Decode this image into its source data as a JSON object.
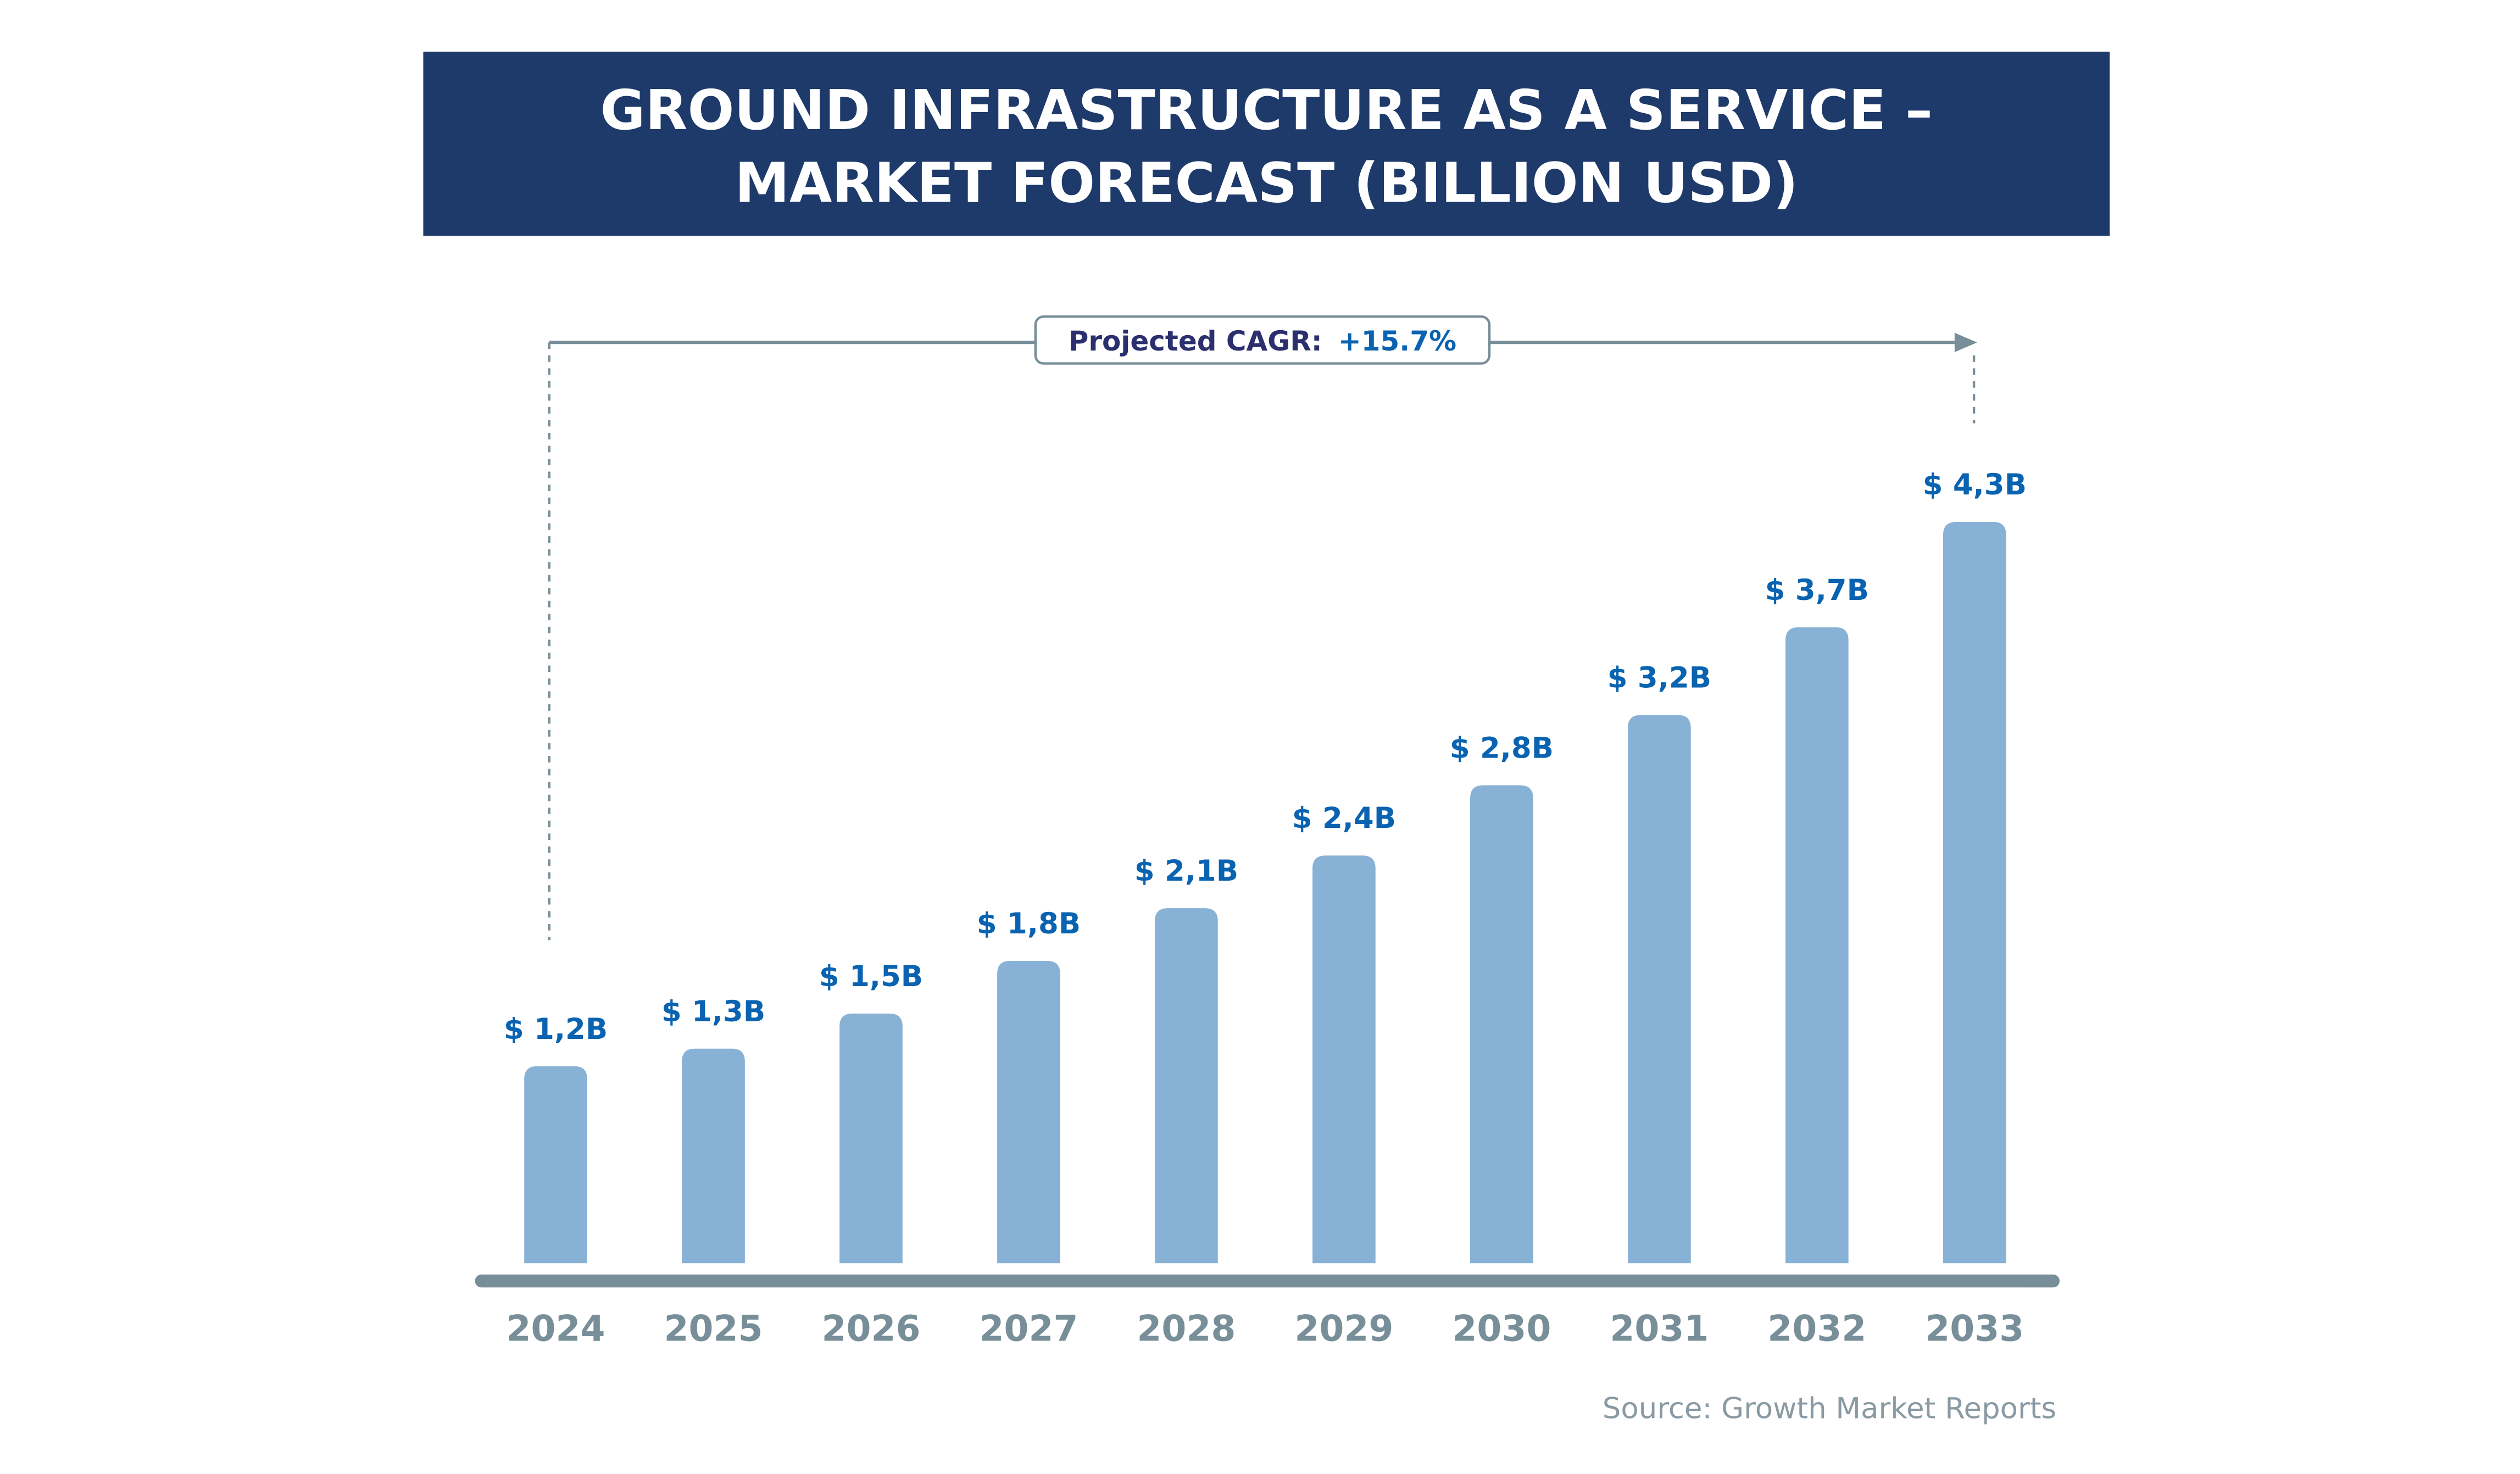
{
  "chart_data": {
    "type": "bar",
    "title": "GROUND INFRASTRUCTURE AS A SERVICE –\nMARKET FORECAST (BILLION USD)",
    "title_lines": [
      "GROUND INFRASTRUCTURE AS A SERVICE –",
      "MARKET FORECAST (BILLION USD)"
    ],
    "categories": [
      "2024",
      "2025",
      "2026",
      "2027",
      "2028",
      "2029",
      "2030",
      "2031",
      "2032",
      "2033"
    ],
    "values": [
      1.2,
      1.3,
      1.5,
      1.8,
      2.1,
      2.4,
      2.8,
      3.2,
      3.7,
      4.3
    ],
    "data_labels": [
      "$ 1,2B",
      "$ 1,3B",
      "$ 1,5B",
      "$ 1,8B",
      "$ 2,1B",
      "$ 2,4B",
      "$ 2,8B",
      "$ 3,2B",
      "$ 3,7B",
      "$ 4,3B"
    ],
    "xlabel": "",
    "ylabel": "",
    "grid": false,
    "annotation": {
      "label": "Projected CAGR:",
      "value": "+15.7%"
    },
    "source": "Source: Growth Market Reports",
    "colors": {
      "title_bg": "#1e3a6a",
      "title_text": "#ffffff",
      "bar": "#88b1d6",
      "data_label": "#0a63b0",
      "axis": "#788f9a",
      "cagr_label": "#2b2f6e",
      "cagr_value": "#0a63b0",
      "source": "#8a9aa3"
    }
  }
}
